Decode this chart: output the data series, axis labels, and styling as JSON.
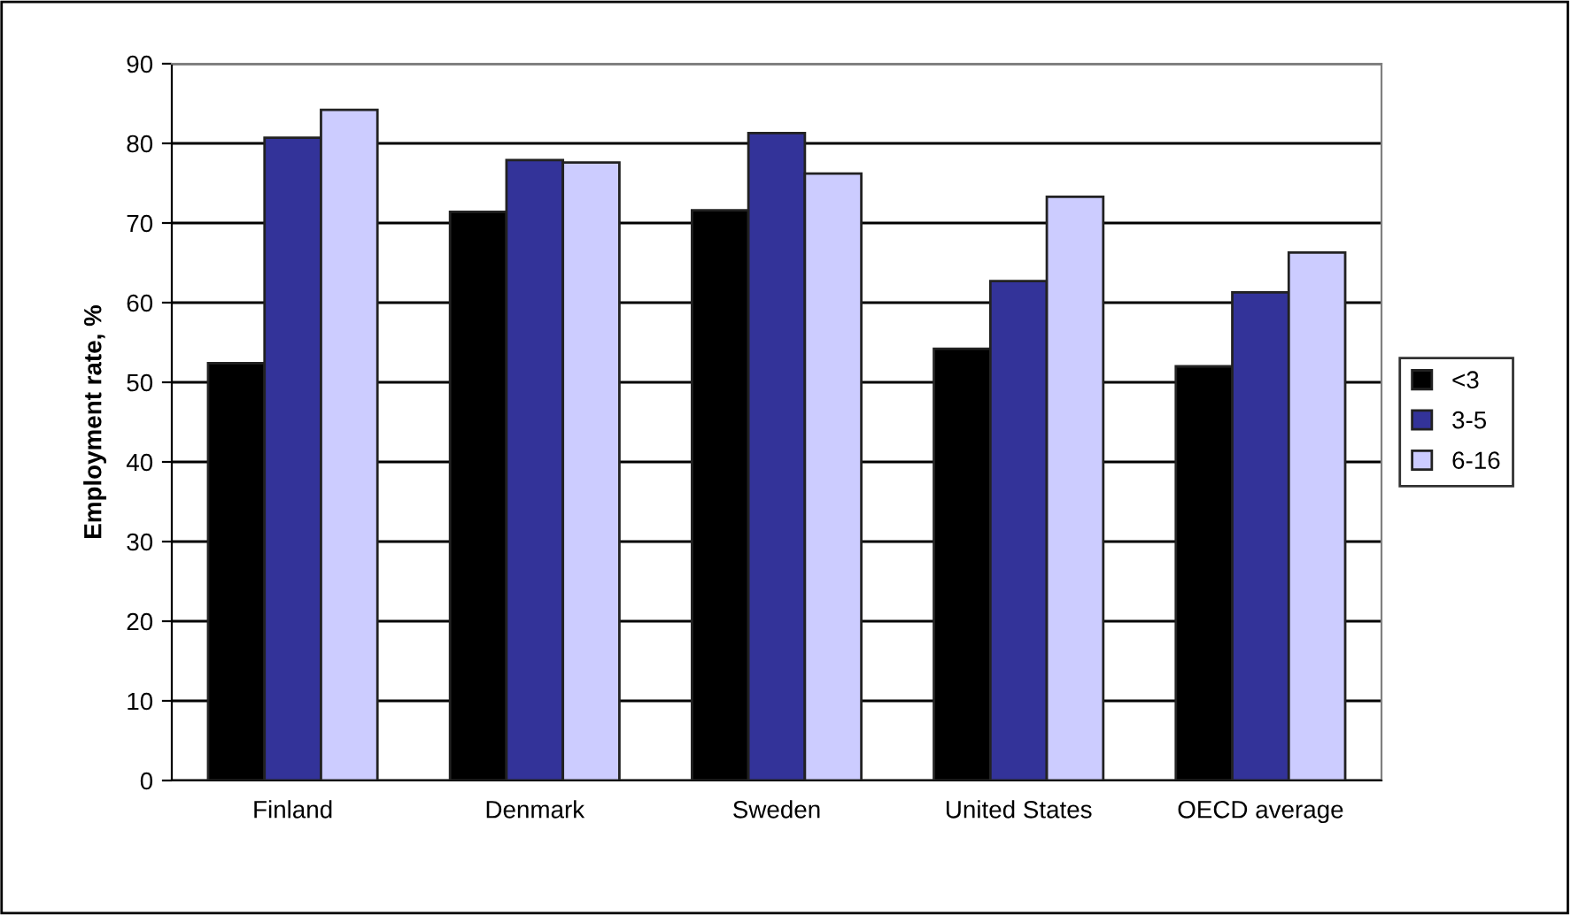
{
  "chart_data": {
    "type": "bar",
    "ylabel": "Employment rate, %",
    "categories": [
      "Finland",
      "Denmark",
      "Sweden",
      "United States",
      "OECD average"
    ],
    "series": [
      {
        "name": "<3",
        "color": "#000000",
        "values": [
          52.4,
          71.4,
          71.6,
          54.2,
          52.0
        ]
      },
      {
        "name": "3-5",
        "color": "#333399",
        "values": [
          80.7,
          77.9,
          81.3,
          62.7,
          61.3
        ]
      },
      {
        "name": "6-16",
        "color": "#ccccff",
        "values": [
          84.2,
          77.6,
          76.2,
          73.3,
          66.3
        ]
      }
    ],
    "ylim": [
      0,
      90
    ],
    "yticks": [
      0,
      10,
      20,
      30,
      40,
      50,
      60,
      70,
      80,
      90
    ],
    "grid": "y",
    "legend": "right"
  }
}
